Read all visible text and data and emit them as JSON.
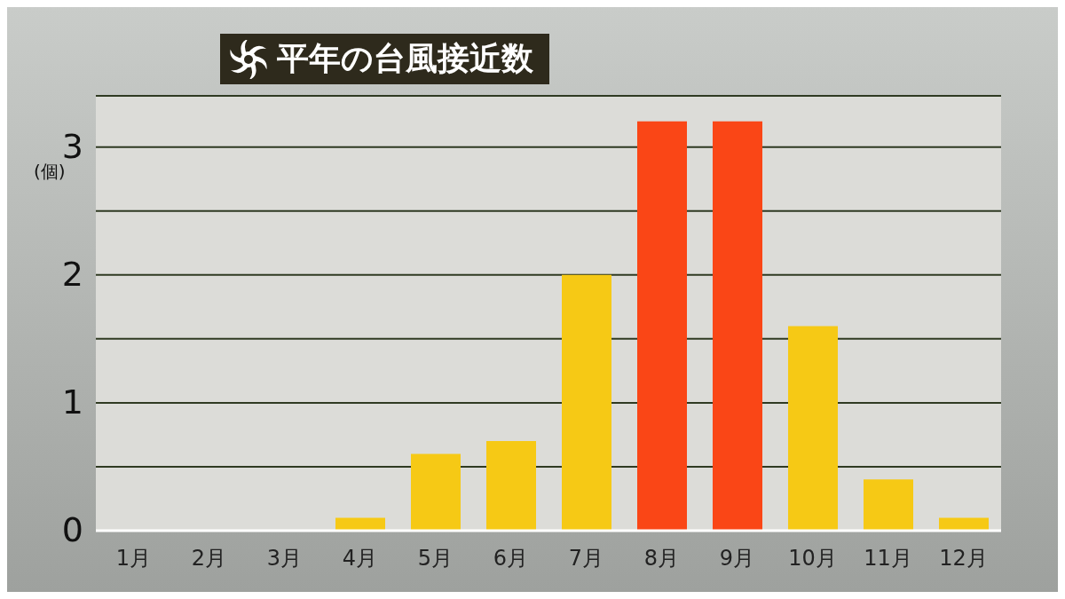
{
  "chart_data": {
    "type": "bar",
    "title": "平年の台風接近数",
    "ylabel": "(個)",
    "categories": [
      "1月",
      "2月",
      "3月",
      "4月",
      "5月",
      "6月",
      "7月",
      "8月",
      "9月",
      "10月",
      "11月",
      "12月"
    ],
    "values": [
      0,
      0,
      0,
      0.1,
      0.6,
      0.7,
      2.0,
      3.2,
      3.2,
      1.6,
      0.4,
      0.1
    ],
    "colors": [
      "#f6c915",
      "#f6c915",
      "#f6c915",
      "#f6c915",
      "#f6c915",
      "#f6c915",
      "#f6c915",
      "#fa4616",
      "#fa4616",
      "#f6c915",
      "#f6c915",
      "#f6c915"
    ],
    "ylim": [
      0,
      3.4
    ],
    "yticks": [
      0,
      {
        "value": 0.5,
        "label": null
      },
      1,
      {
        "value": 1.5,
        "label": null
      },
      2,
      {
        "value": 2.5,
        "label": null
      },
      3
    ],
    "grid": "y"
  }
}
